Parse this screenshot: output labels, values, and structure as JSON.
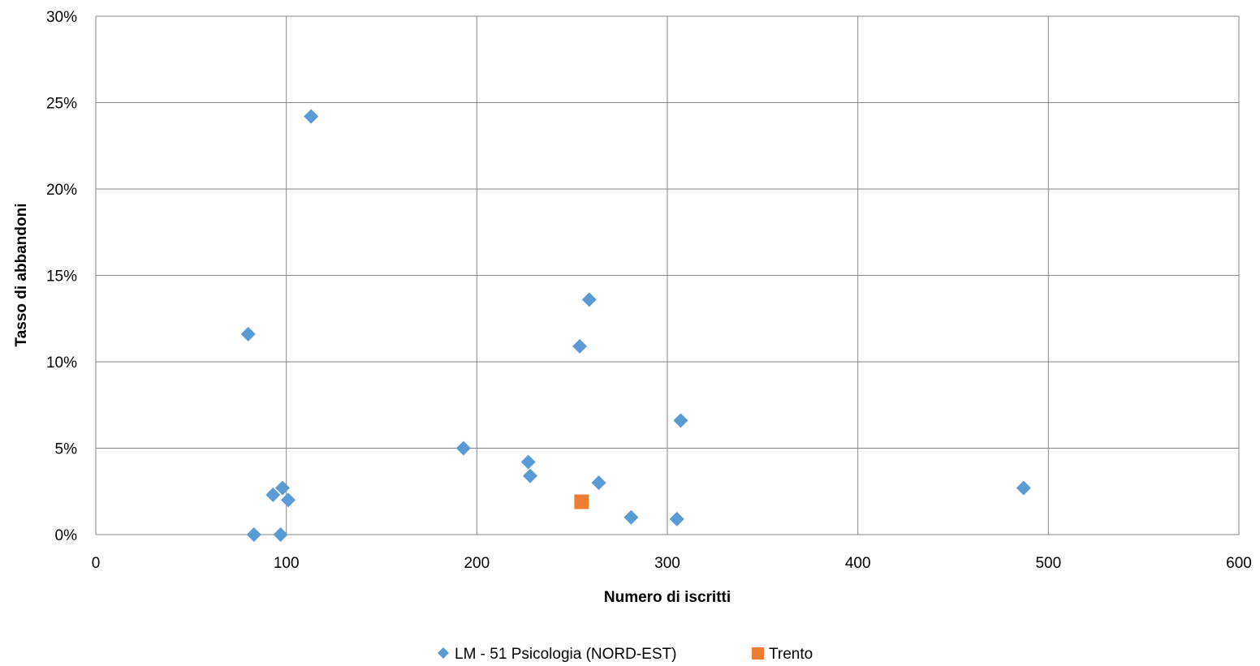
{
  "chart_data": {
    "type": "scatter",
    "title": "",
    "xlabel": "Numero di iscritti",
    "ylabel": "Tasso di abbandoni",
    "xlim": [
      0,
      600
    ],
    "ylim": [
      0,
      0.3
    ],
    "x_ticks": [
      "0",
      "100",
      "200",
      "300",
      "400",
      "500",
      "600"
    ],
    "y_ticks": [
      "0%",
      "5%",
      "10%",
      "15%",
      "20%",
      "25%",
      "30%"
    ],
    "grid": true,
    "legend_position": "bottom",
    "series": [
      {
        "name": "LM - 51 Psicologia (NORD-EST)",
        "marker": "diamond",
        "color": "#5B9BD5",
        "points": [
          {
            "x": 113,
            "y": 0.242
          },
          {
            "x": 80,
            "y": 0.116
          },
          {
            "x": 259,
            "y": 0.136
          },
          {
            "x": 254,
            "y": 0.109
          },
          {
            "x": 307,
            "y": 0.066
          },
          {
            "x": 193,
            "y": 0.05
          },
          {
            "x": 227,
            "y": 0.042
          },
          {
            "x": 228,
            "y": 0.034
          },
          {
            "x": 264,
            "y": 0.03
          },
          {
            "x": 98,
            "y": 0.027
          },
          {
            "x": 93,
            "y": 0.023
          },
          {
            "x": 101,
            "y": 0.02
          },
          {
            "x": 281,
            "y": 0.01
          },
          {
            "x": 305,
            "y": 0.009
          },
          {
            "x": 83,
            "y": 0.0
          },
          {
            "x": 97,
            "y": 0.0
          },
          {
            "x": 487,
            "y": 0.027
          }
        ]
      },
      {
        "name": "Trento",
        "marker": "square",
        "color": "#ED7D31",
        "points": [
          {
            "x": 255,
            "y": 0.019
          }
        ]
      }
    ]
  }
}
